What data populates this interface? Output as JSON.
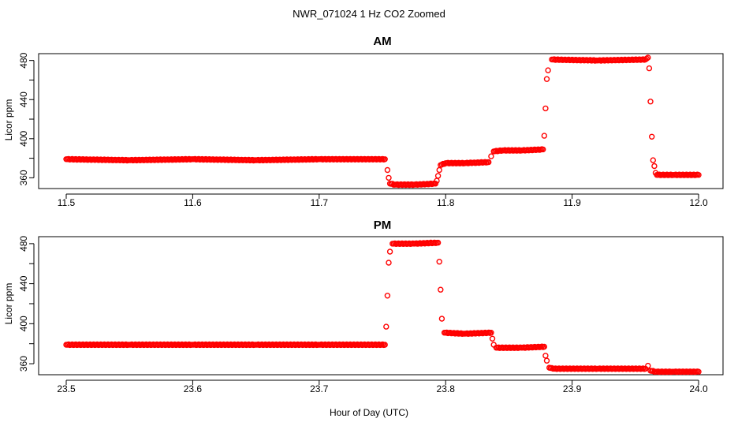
{
  "figure": {
    "title": "NWR_071024  1 Hz CO2 Zoomed",
    "xlabel": "Hour of Day (UTC)",
    "marker_color": "#ff0000"
  },
  "chart_data": [
    {
      "type": "scatter",
      "title": "AM",
      "xlabel": "",
      "ylabel": "Licor ppm",
      "xlim": [
        11.5,
        12.0
      ],
      "ylim": [
        349,
        487
      ],
      "xticks": [
        "11.5",
        "11.6",
        "11.7",
        "11.8",
        "11.9",
        "12.0"
      ],
      "yticks": [
        "360",
        "400",
        "440",
        "480"
      ],
      "grid": false,
      "series": [
        {
          "marker": "open-circle",
          "color": "#ff0000",
          "points": [
            [
              11.5,
              379
            ],
            [
              11.55,
              378
            ],
            [
              11.6,
              379
            ],
            [
              11.65,
              378
            ],
            [
              11.7,
              379
            ],
            [
              11.752,
              379
            ],
            [
              11.754,
              368
            ],
            [
              11.755,
              360
            ],
            [
              11.756,
              354
            ],
            [
              11.76,
              353
            ],
            [
              11.775,
              353
            ],
            [
              11.792,
              354
            ],
            [
              11.793,
              357
            ],
            [
              11.794,
              362
            ],
            [
              11.795,
              368
            ],
            [
              11.796,
              373
            ],
            [
              11.8,
              375
            ],
            [
              11.815,
              375
            ],
            [
              11.834,
              376
            ],
            [
              11.836,
              382
            ],
            [
              11.838,
              387
            ],
            [
              11.845,
              388
            ],
            [
              11.86,
              388
            ],
            [
              11.877,
              389
            ],
            [
              11.878,
              403
            ],
            [
              11.879,
              431
            ],
            [
              11.88,
              461
            ],
            [
              11.881,
              470
            ],
            [
              11.884,
              481
            ],
            [
              11.92,
              480
            ],
            [
              11.958,
              481
            ],
            [
              11.96,
              483
            ],
            [
              11.961,
              472
            ],
            [
              11.962,
              438
            ],
            [
              11.963,
              402
            ],
            [
              11.964,
              378
            ],
            [
              11.965,
              372
            ],
            [
              11.966,
              365
            ],
            [
              11.967,
              363
            ],
            [
              11.98,
              363
            ],
            [
              12.0,
              363
            ]
          ]
        }
      ]
    },
    {
      "type": "scatter",
      "title": "PM",
      "xlabel": "",
      "ylabel": "Licor ppm",
      "xlim": [
        23.5,
        24.0
      ],
      "ylim": [
        349,
        487
      ],
      "xticks": [
        "23.5",
        "23.6",
        "23.7",
        "23.8",
        "23.9",
        "24.0"
      ],
      "yticks": [
        "360",
        "400",
        "440",
        "480"
      ],
      "grid": false,
      "series": [
        {
          "marker": "open-circle",
          "color": "#ff0000",
          "points": [
            [
              23.5,
              379
            ],
            [
              23.55,
              379
            ],
            [
              23.6,
              379
            ],
            [
              23.65,
              379
            ],
            [
              23.7,
              379
            ],
            [
              23.752,
              379
            ],
            [
              23.753,
              397
            ],
            [
              23.754,
              428
            ],
            [
              23.755,
              461
            ],
            [
              23.756,
              472
            ],
            [
              23.758,
              480
            ],
            [
              23.775,
              480
            ],
            [
              23.794,
              481
            ],
            [
              23.795,
              462
            ],
            [
              23.796,
              434
            ],
            [
              23.797,
              405
            ],
            [
              23.799,
              391
            ],
            [
              23.815,
              390
            ],
            [
              23.836,
              391
            ],
            [
              23.837,
              385
            ],
            [
              23.838,
              379
            ],
            [
              23.84,
              376
            ],
            [
              23.86,
              376
            ],
            [
              23.878,
              377
            ],
            [
              23.879,
              368
            ],
            [
              23.88,
              363
            ],
            [
              23.882,
              356
            ],
            [
              23.885,
              355
            ],
            [
              23.92,
              355
            ],
            [
              23.958,
              355
            ],
            [
              23.96,
              358
            ],
            [
              23.962,
              353
            ],
            [
              23.966,
              352
            ],
            [
              23.98,
              352
            ],
            [
              24.0,
              352
            ]
          ]
        }
      ]
    }
  ]
}
